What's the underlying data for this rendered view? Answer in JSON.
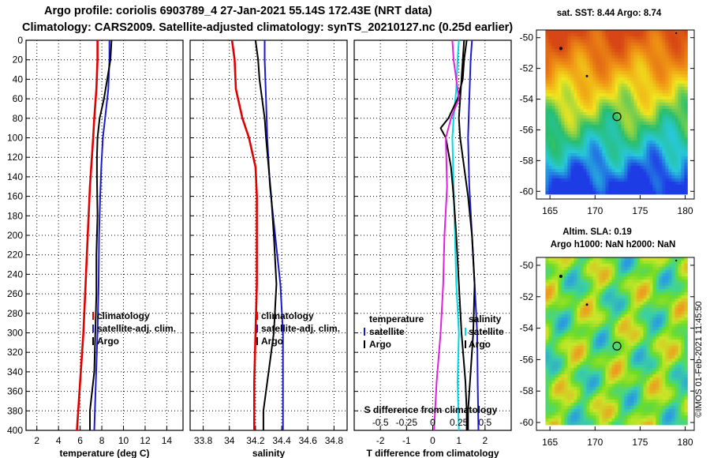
{
  "header": {
    "line1": "Argo profile: coriolis 6903789_4 27-Jan-2021 55.14S 172.43E (NRT data)",
    "line2": "Climatology: CARS2009. Satellite-adjusted climatology: synTS_20210127.nc (0.25d earlier)"
  },
  "colors": {
    "argo": "#000000",
    "climatology": "#e00000",
    "satellite": "#1a1acc",
    "t_satellite": "#00d8e0",
    "s_climatology": "#e020e0",
    "grid": "#000000"
  },
  "chart_data": [
    {
      "type": "line",
      "name": "temperature",
      "xlabel": "temperature (deg C)",
      "ylabel": "",
      "xlim": [
        1,
        15.5
      ],
      "ylim": [
        400,
        0
      ],
      "xticks": [
        2,
        4,
        6,
        8,
        10,
        12,
        14
      ],
      "xtick_labels": [
        "2",
        "4",
        "6",
        "8",
        "10",
        "12",
        "14"
      ],
      "yticks": [
        0,
        20,
        40,
        60,
        80,
        100,
        120,
        140,
        160,
        180,
        200,
        220,
        240,
        260,
        280,
        300,
        320,
        340,
        360,
        380,
        400
      ],
      "ytick_labels": [
        "0",
        "20",
        "40",
        "60",
        "80",
        "100",
        "120",
        "140",
        "160",
        "180",
        "200",
        "220",
        "240",
        "260",
        "280",
        "300",
        "320",
        "340",
        "360",
        "380",
        "400"
      ],
      "grid": true,
      "legend": {
        "position": "middle-right",
        "entries": [
          "climatology",
          "satellite-adj. clim.",
          "Argo"
        ]
      },
      "series": [
        {
          "name": "climatology",
          "color": "#e00000",
          "depth": [
            0,
            20,
            50,
            80,
            100,
            150,
            200,
            250,
            300,
            350,
            400
          ],
          "values": [
            7.6,
            7.6,
            7.5,
            7.3,
            7.2,
            6.9,
            6.7,
            6.5,
            6.3,
            6.0,
            5.7
          ]
        },
        {
          "name": "satellite-adj. clim.",
          "color": "#1a1acc",
          "depth": [
            0,
            20,
            50,
            80,
            100,
            130,
            160,
            200,
            250,
            300,
            350,
            400
          ],
          "values": [
            8.7,
            8.7,
            8.6,
            8.3,
            8.1,
            7.95,
            7.85,
            7.75,
            7.7,
            7.6,
            7.45,
            7.3
          ]
        },
        {
          "name": "Argo",
          "color": "#000000",
          "depth": [
            0,
            20,
            40,
            60,
            80,
            100,
            120,
            140,
            180,
            220,
            260,
            300,
            340,
            380,
            400
          ],
          "values": [
            8.9,
            8.8,
            8.5,
            8.2,
            7.8,
            7.6,
            7.55,
            7.55,
            7.6,
            7.5,
            7.5,
            7.4,
            7.3,
            6.9,
            6.9
          ]
        }
      ]
    },
    {
      "type": "line",
      "name": "salinity",
      "xlabel": "salinity",
      "xlim": [
        33.7,
        34.9
      ],
      "ylim": [
        400,
        0
      ],
      "xticks": [
        33.8,
        34,
        34.2,
        34.4,
        34.6,
        34.8
      ],
      "xtick_labels": [
        "33.8",
        "34",
        "34.2",
        "34.4",
        "34.6",
        "34.8"
      ],
      "grid": true,
      "legend": {
        "position": "middle-right",
        "entries": [
          "climatology",
          "satellite-adj. clim.",
          "Argo"
        ]
      },
      "series": [
        {
          "name": "climatology",
          "color": "#e00000",
          "depth": [
            0,
            20,
            50,
            80,
            100,
            130,
            160,
            200,
            250,
            300,
            350,
            400
          ],
          "values": [
            34.02,
            34.04,
            34.05,
            34.1,
            34.15,
            34.2,
            34.21,
            34.21,
            34.21,
            34.2,
            34.19,
            34.19
          ]
        },
        {
          "name": "satellite-adj. clim.",
          "color": "#1a1acc",
          "depth": [
            0,
            20,
            60,
            100,
            150,
            200,
            250,
            300,
            350,
            400
          ],
          "values": [
            34.27,
            34.27,
            34.28,
            34.29,
            34.31,
            34.35,
            34.39,
            34.41,
            34.41,
            34.41
          ]
        },
        {
          "name": "Argo",
          "color": "#000000",
          "depth": [
            0,
            20,
            40,
            60,
            80,
            100,
            130,
            160,
            200,
            250,
            300,
            340,
            380,
            400
          ],
          "values": [
            34.2,
            34.22,
            34.23,
            34.25,
            34.27,
            34.28,
            34.3,
            34.32,
            34.34,
            34.36,
            34.34,
            34.3,
            34.26,
            34.26
          ]
        }
      ]
    },
    {
      "type": "line",
      "name": "differences",
      "xlabel": "T difference from climatology",
      "xlim": [
        -3,
        3
      ],
      "ylim": [
        400,
        0
      ],
      "xticks": [
        -2,
        -1,
        0,
        1,
        2
      ],
      "xtick_labels": [
        "-2",
        "-1",
        "0",
        "1",
        "2"
      ],
      "secondary_xlabel": "S difference from climatology",
      "secondary_xticks": [
        -0.5,
        -0.25,
        0,
        0.25,
        0.5
      ],
      "secondary_xtick_labels": [
        "-0.5",
        "-0.25",
        "0",
        "0.25",
        "0.5"
      ],
      "grid": true,
      "legend_temperature": {
        "title": "temperature",
        "entries": [
          "satellite",
          "Argo"
        ]
      },
      "legend_salinity": {
        "title": "salinity",
        "entries": [
          "satellite",
          "Argo"
        ]
      },
      "series": [
        {
          "name": "T satellite",
          "color": "#00d8e0",
          "depth": [
            0,
            20,
            50,
            80,
            100,
            150,
            200,
            250,
            300,
            350,
            400
          ],
          "values": [
            1.0,
            0.95,
            0.9,
            0.8,
            0.75,
            0.8,
            0.85,
            0.9,
            1.0,
            0.95,
            1.0
          ]
        },
        {
          "name": "T Argo",
          "color": "#000000",
          "depth": [
            0,
            20,
            40,
            60,
            80,
            90,
            100,
            130,
            160,
            200,
            250,
            300,
            350,
            380,
            400
          ],
          "values": [
            1.3,
            1.2,
            1.15,
            0.95,
            0.6,
            0.3,
            0.5,
            0.7,
            0.8,
            0.9,
            1.0,
            1.1,
            1.25,
            1.3,
            1.3
          ]
        },
        {
          "name": "S climatology",
          "color": "#e020e0",
          "depth": [
            0,
            20,
            40,
            60,
            80,
            100,
            150,
            200,
            250,
            300,
            350,
            400
          ],
          "values": [
            0.75,
            0.8,
            0.9,
            1.0,
            0.7,
            0.5,
            0.55,
            0.45,
            0.4,
            0.3,
            0.15,
            0.05
          ]
        },
        {
          "name": "S satellite",
          "color": "#1a1acc",
          "depth": [
            0,
            20,
            60,
            100,
            150,
            200,
            250,
            300,
            350,
            400
          ],
          "values": [
            1.5,
            1.45,
            1.4,
            1.35,
            1.4,
            1.5,
            1.6,
            1.7,
            1.72,
            1.75
          ]
        },
        {
          "name": "S Argo",
          "color": "#000000",
          "depth": [
            0,
            40,
            80,
            100,
            130,
            160,
            200,
            250,
            300,
            340,
            380,
            400
          ],
          "values": [
            1.2,
            1.1,
            1.0,
            1.05,
            1.2,
            1.35,
            1.5,
            1.6,
            1.55,
            1.45,
            1.35,
            1.35
          ]
        }
      ]
    },
    {
      "type": "heatmap",
      "name": "sst-map",
      "title": "sat. SST: 8.44 Argo: 8.74",
      "xlim": [
        163.5,
        181
      ],
      "ylim": [
        -60.5,
        -49.5
      ],
      "xticks": [
        165,
        170,
        175,
        180
      ],
      "xtick_labels": [
        "165",
        "170",
        "175",
        "180"
      ],
      "yticks": [
        -50,
        -52,
        -54,
        -56,
        -58,
        -60
      ],
      "ytick_labels": [
        "-50",
        "-52",
        "-54",
        "-56",
        "-58",
        "-60"
      ],
      "argo_position": [
        172.43,
        -55.14
      ]
    },
    {
      "type": "heatmap",
      "name": "sla-map",
      "title_line1": "Altim. SLA: 0.19",
      "title_line2": "Argo h1000: NaN h2000: NaN",
      "xlim": [
        163.5,
        181
      ],
      "ylim": [
        -60.5,
        -49.5
      ],
      "xticks": [
        165,
        170,
        175,
        180
      ],
      "xtick_labels": [
        "165",
        "170",
        "175",
        "180"
      ],
      "yticks": [
        -50,
        -52,
        -54,
        -56,
        -58,
        -60
      ],
      "ytick_labels": [
        "-50",
        "-52",
        "-54",
        "-56",
        "-58",
        "-60"
      ],
      "argo_position": [
        172.43,
        -55.14
      ]
    }
  ],
  "footer": {
    "stamp": "©IMOS 01-Feb-2021 11:45:50"
  }
}
